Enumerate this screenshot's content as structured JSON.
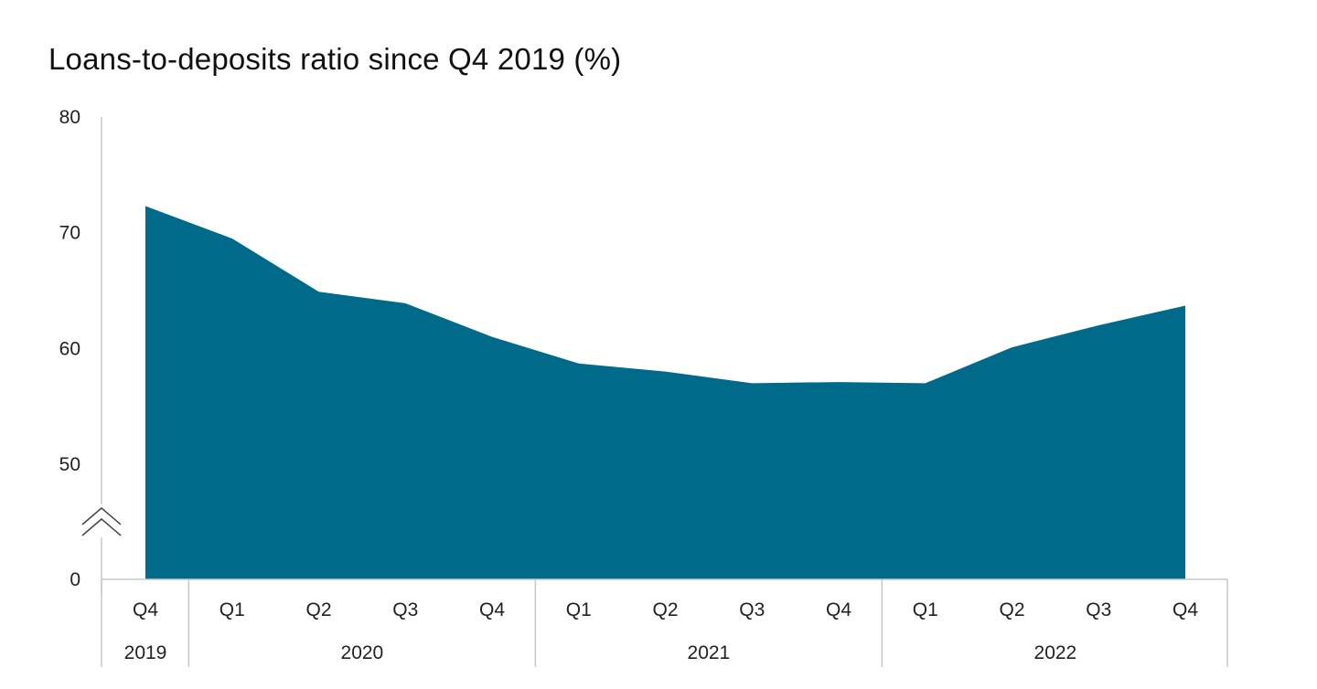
{
  "chart_data": {
    "type": "area",
    "title": "Loans-to-deposits ratio since Q4 2019 (%)",
    "xlabel": "",
    "ylabel": "",
    "categories": [
      "Q4",
      "Q1",
      "Q2",
      "Q3",
      "Q4",
      "Q1",
      "Q2",
      "Q3",
      "Q4",
      "Q1",
      "Q2",
      "Q3",
      "Q4"
    ],
    "year_groups": [
      {
        "label": "2019",
        "span": 1
      },
      {
        "label": "2020",
        "span": 4
      },
      {
        "label": "2021",
        "span": 4
      },
      {
        "label": "2022",
        "span": 4
      }
    ],
    "series": [
      {
        "values": [
          72.3,
          69.5,
          64.9,
          63.9,
          61.0,
          58.7,
          58.0,
          57.0,
          57.1,
          57.0,
          60.1,
          62.0,
          63.7
        ]
      }
    ],
    "y_ticks": [
      0,
      50,
      60,
      70,
      80
    ],
    "ylim": [
      0,
      80
    ],
    "y_axis_break": true,
    "grid": false,
    "legend": "none",
    "colors": {
      "area": "#006a8b",
      "axis": "#c8c8c8"
    }
  }
}
